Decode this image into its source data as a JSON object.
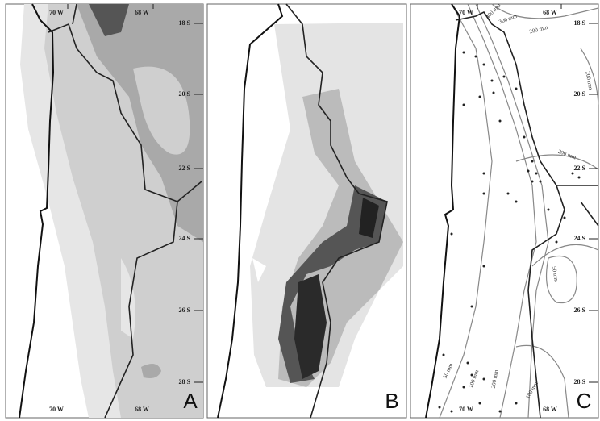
{
  "panels": [
    {
      "label": "A",
      "top_lon": [
        "70 W",
        "68 W"
      ],
      "lat_labels": [
        "18 S",
        "20 S",
        "22 S",
        "24 S",
        "26 S",
        "28 S"
      ],
      "bottom_lon": [
        "70 W",
        "68 W"
      ]
    },
    {
      "label": "B"
    },
    {
      "label": "C",
      "top_lon": [
        "70 W",
        "68 W"
      ],
      "lat_labels": [
        "18 S",
        "20 S",
        "22 S",
        "24 S",
        "26 S",
        "28 S"
      ],
      "bottom_lon": [
        "70 W",
        "68 W"
      ],
      "contour_labels": [
        "400 mm",
        "300 mm",
        "200 mm",
        "200 mm",
        "200 mm",
        "50 mm",
        "100 mm",
        "200 mm",
        "100 mm",
        "50 mm"
      ]
    }
  ]
}
